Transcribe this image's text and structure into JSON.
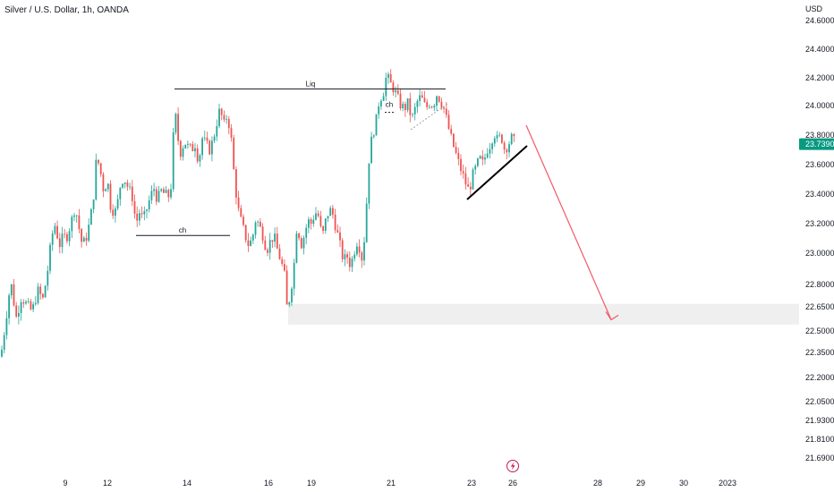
{
  "header": {
    "title": "Silver / U.S. Dollar, 1h, OANDA",
    "currency": "USD"
  },
  "colors": {
    "up": "#26a69a",
    "down": "#ef5350",
    "arrow": "#f05a6a",
    "price_tag": "#089981",
    "zone": "#efefef"
  },
  "icons": [
    "lightning-icon"
  ],
  "chart_data": {
    "type": "candlestick",
    "title": "Silver / U.S. Dollar, 1h, OANDA",
    "ylabel": "USD",
    "ylim": [
      21.6,
      24.66
    ],
    "y_ticks": [
      {
        "value": 24.6,
        "label": "24.60000"
      },
      {
        "value": 24.4,
        "label": "24.40000"
      },
      {
        "value": 24.2,
        "label": "24.20000"
      },
      {
        "value": 24.0,
        "label": "24.00000"
      },
      {
        "value": 23.8,
        "label": "23.80000"
      },
      {
        "value": 23.6,
        "label": "23.60000"
      },
      {
        "value": 23.4,
        "label": "23.40000"
      },
      {
        "value": 23.2,
        "label": "23.20000"
      },
      {
        "value": 23.0,
        "label": "23.00000"
      },
      {
        "value": 22.8,
        "label": "22.80000"
      },
      {
        "value": 22.65,
        "label": "22.65000"
      },
      {
        "value": 22.5,
        "label": "22.50000"
      },
      {
        "value": 22.35,
        "label": "22.35000"
      },
      {
        "value": 22.2,
        "label": "22.20000"
      },
      {
        "value": 22.05,
        "label": "22.05000"
      },
      {
        "value": 21.93,
        "label": "21.93000"
      },
      {
        "value": 21.81,
        "label": "21.81000"
      },
      {
        "value": 21.69,
        "label": "21.69000"
      }
    ],
    "x_ticks": [
      "9",
      "12",
      "14",
      "16",
      "19",
      "21",
      "23",
      "26",
      "28",
      "29",
      "30",
      "2023"
    ],
    "last_price": {
      "value": 23.739,
      "label": "23.73900"
    },
    "annotations": {
      "liq_label": "Liq",
      "liq_level": 24.12,
      "ch_low_label": "ch",
      "ch_low_level": 23.12,
      "ch_high_label": "ch",
      "ch_high_level": 23.99,
      "zone_range": [
        22.54,
        22.67
      ],
      "target_price": 22.57
    },
    "path": [
      [
        0,
        22.28
      ],
      [
        6,
        22.55
      ],
      [
        12,
        22.82
      ],
      [
        18,
        22.58
      ],
      [
        24,
        22.72
      ],
      [
        30,
        22.66
      ],
      [
        36,
        22.62
      ],
      [
        42,
        22.76
      ],
      [
        48,
        22.7
      ],
      [
        54,
        22.92
      ],
      [
        58,
        23.12
      ],
      [
        62,
        23.2
      ],
      [
        66,
        23.05
      ],
      [
        70,
        23.1
      ],
      [
        75,
        23.12
      ],
      [
        80,
        23.22
      ],
      [
        84,
        23.32
      ],
      [
        88,
        23.18
      ],
      [
        92,
        23.05
      ],
      [
        96,
        23.1
      ],
      [
        100,
        23.2
      ],
      [
        104,
        23.35
      ],
      [
        108,
        23.66
      ],
      [
        112,
        23.56
      ],
      [
        116,
        23.42
      ],
      [
        120,
        23.5
      ],
      [
        124,
        23.3
      ],
      [
        130,
        23.28
      ],
      [
        134,
        23.45
      ],
      [
        138,
        23.52
      ],
      [
        142,
        23.46
      ],
      [
        148,
        23.38
      ],
      [
        152,
        23.2
      ],
      [
        156,
        23.28
      ],
      [
        160,
        23.22
      ],
      [
        164,
        23.3
      ],
      [
        168,
        23.38
      ],
      [
        172,
        23.44
      ],
      [
        176,
        23.36
      ],
      [
        180,
        23.42
      ],
      [
        184,
        23.4
      ],
      [
        188,
        23.38
      ],
      [
        192,
        23.48
      ],
      [
        195,
        24.02
      ],
      [
        198,
        23.8
      ],
      [
        202,
        23.68
      ],
      [
        206,
        23.76
      ],
      [
        210,
        23.72
      ],
      [
        214,
        23.7
      ],
      [
        218,
        23.74
      ],
      [
        222,
        23.62
      ],
      [
        226,
        23.78
      ],
      [
        230,
        23.74
      ],
      [
        234,
        23.7
      ],
      [
        238,
        23.76
      ],
      [
        242,
        23.88
      ],
      [
        246,
        23.98
      ],
      [
        250,
        23.86
      ],
      [
        254,
        23.94
      ],
      [
        258,
        23.8
      ],
      [
        262,
        23.5
      ],
      [
        266,
        23.3
      ],
      [
        270,
        23.2
      ],
      [
        274,
        23.12
      ],
      [
        278,
        23.05
      ],
      [
        282,
        23.1
      ],
      [
        286,
        23.24
      ],
      [
        290,
        23.18
      ],
      [
        294,
        23.12
      ],
      [
        298,
        23.02
      ],
      [
        302,
        23.08
      ],
      [
        306,
        23.12
      ],
      [
        310,
        23.02
      ],
      [
        314,
        22.95
      ],
      [
        318,
        22.85
      ],
      [
        321,
        22.62
      ],
      [
        325,
        22.76
      ],
      [
        329,
        22.95
      ],
      [
        332,
        23.22
      ],
      [
        336,
        23.05
      ],
      [
        340,
        23.12
      ],
      [
        344,
        23.22
      ],
      [
        348,
        23.2
      ],
      [
        352,
        23.28
      ],
      [
        356,
        23.25
      ],
      [
        360,
        23.1
      ],
      [
        364,
        23.22
      ],
      [
        368,
        23.3
      ],
      [
        372,
        23.26
      ],
      [
        376,
        23.16
      ],
      [
        380,
        23.05
      ],
      [
        384,
        22.95
      ],
      [
        388,
        22.98
      ],
      [
        392,
        22.92
      ],
      [
        396,
        23.02
      ],
      [
        400,
        23.1
      ],
      [
        404,
        22.96
      ],
      [
        408,
        23.14
      ],
      [
        412,
        23.62
      ],
      [
        416,
        23.8
      ],
      [
        420,
        23.88
      ],
      [
        424,
        24.05
      ],
      [
        428,
        24.08
      ],
      [
        432,
        24.22
      ],
      [
        436,
        24.16
      ],
      [
        440,
        24.12
      ],
      [
        444,
        24.06
      ],
      [
        448,
        24.0
      ],
      [
        452,
        23.98
      ],
      [
        456,
        24.02
      ],
      [
        460,
        23.9
      ],
      [
        464,
        23.98
      ],
      [
        468,
        24.06
      ],
      [
        472,
        24.04
      ],
      [
        476,
        23.98
      ],
      [
        480,
        24.02
      ],
      [
        484,
        24.0
      ],
      [
        488,
        24.08
      ],
      [
        492,
        24.04
      ],
      [
        496,
        23.98
      ],
      [
        500,
        23.88
      ],
      [
        504,
        23.78
      ],
      [
        508,
        23.7
      ],
      [
        512,
        23.62
      ],
      [
        516,
        23.55
      ],
      [
        520,
        23.48
      ],
      [
        524,
        23.42
      ],
      [
        528,
        23.52
      ],
      [
        532,
        23.58
      ],
      [
        536,
        23.64
      ],
      [
        540,
        23.6
      ],
      [
        544,
        23.7
      ],
      [
        548,
        23.74
      ],
      [
        552,
        23.82
      ],
      [
        556,
        23.76
      ],
      [
        560,
        23.8
      ],
      [
        564,
        23.7
      ],
      [
        568,
        23.74
      ],
      [
        572,
        23.78
      ],
      [
        576,
        23.74
      ]
    ]
  }
}
